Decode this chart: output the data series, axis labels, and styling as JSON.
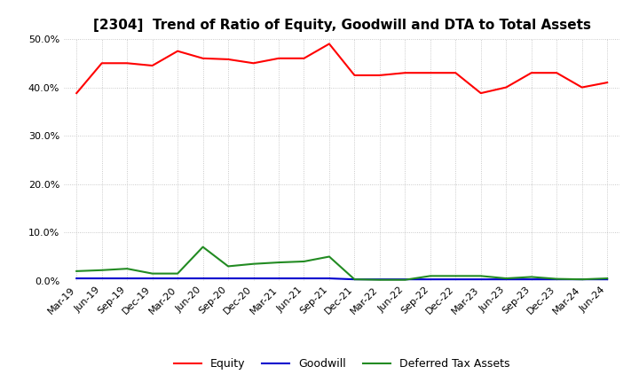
{
  "title": "[2304]  Trend of Ratio of Equity, Goodwill and DTA to Total Assets",
  "x_labels": [
    "Mar-19",
    "Jun-19",
    "Sep-19",
    "Dec-19",
    "Mar-20",
    "Jun-20",
    "Sep-20",
    "Dec-20",
    "Mar-21",
    "Jun-21",
    "Sep-21",
    "Dec-21",
    "Mar-22",
    "Jun-22",
    "Sep-22",
    "Dec-22",
    "Mar-23",
    "Jun-23",
    "Sep-23",
    "Dec-23",
    "Mar-24",
    "Jun-24"
  ],
  "equity": [
    38.8,
    45.0,
    45.0,
    44.5,
    47.5,
    46.0,
    45.8,
    45.0,
    46.0,
    46.0,
    49.0,
    42.5,
    42.5,
    43.0,
    43.0,
    43.0,
    38.8,
    40.0,
    43.0,
    43.0,
    40.0,
    41.0
  ],
  "goodwill": [
    0.5,
    0.5,
    0.5,
    0.5,
    0.5,
    0.5,
    0.5,
    0.5,
    0.5,
    0.5,
    0.5,
    0.3,
    0.3,
    0.3,
    0.3,
    0.3,
    0.3,
    0.3,
    0.3,
    0.3,
    0.3,
    0.3
  ],
  "dta": [
    2.0,
    2.2,
    2.5,
    1.5,
    1.5,
    7.0,
    3.0,
    3.5,
    3.8,
    4.0,
    5.0,
    0.3,
    0.2,
    0.2,
    1.0,
    1.0,
    1.0,
    0.5,
    0.8,
    0.4,
    0.3,
    0.5
  ],
  "equity_color": "#ff0000",
  "goodwill_color": "#0000cd",
  "dta_color": "#228b22",
  "background_color": "#ffffff",
  "plot_bg_color": "#ffffff",
  "grid_color": "#bbbbbb",
  "ylim": [
    0.0,
    50.0
  ],
  "yticks": [
    0.0,
    10.0,
    20.0,
    30.0,
    40.0,
    50.0
  ],
  "title_fontsize": 11,
  "legend_labels": [
    "Equity",
    "Goodwill",
    "Deferred Tax Assets"
  ],
  "linewidth": 1.5
}
